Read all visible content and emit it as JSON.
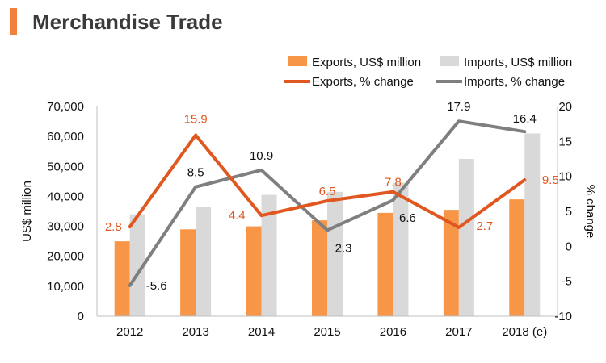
{
  "header": {
    "title": "Merchandise Trade"
  },
  "colors": {
    "exports_bar": "#f79646",
    "imports_bar": "#d9d9d9",
    "exports_line": "#e0571f",
    "imports_line": "#7f7f7f",
    "exports_label": "#e0571f",
    "imports_label": "#111111",
    "accent": "#f0803c"
  },
  "chart_data": {
    "type": "bar",
    "categories": [
      "2012",
      "2013",
      "2014",
      "2015",
      "2016",
      "2017",
      "2018 (e)"
    ],
    "ylabel": "US$ million",
    "y2label": "% change",
    "ylim": [
      0,
      70000
    ],
    "y2lim": [
      -10,
      20
    ],
    "yticks": [
      "0",
      "10,000",
      "20,000",
      "30,000",
      "40,000",
      "50,000",
      "60,000",
      "70,000"
    ],
    "y2ticks": [
      "-10",
      "-5",
      "0",
      "5",
      "10",
      "15",
      "20"
    ],
    "legend_position": "top-right",
    "series": [
      {
        "name": "Exports, US$ million",
        "kind": "bar",
        "axis": "left",
        "values": [
          25000,
          29000,
          30000,
          32000,
          34500,
          35500,
          39000
        ]
      },
      {
        "name": "Imports, US$ million",
        "kind": "bar",
        "axis": "left",
        "values": [
          34000,
          36500,
          40500,
          41500,
          44500,
          52500,
          61000
        ]
      },
      {
        "name": "Exports, % change",
        "kind": "line",
        "axis": "right",
        "values": [
          2.8,
          15.9,
          4.4,
          6.5,
          7.8,
          2.7,
          9.5
        ],
        "labels": [
          "2.8",
          "15.9",
          "4.4",
          "6.5",
          "7.8",
          "2.7",
          "9.5"
        ]
      },
      {
        "name": "Imports, % change",
        "kind": "line",
        "axis": "right",
        "values": [
          -5.6,
          8.5,
          10.9,
          2.3,
          6.6,
          17.9,
          16.4
        ],
        "labels": [
          "-5.6",
          "8.5",
          "10.9",
          "2.3",
          "6.6",
          "17.9",
          "16.4"
        ]
      }
    ]
  }
}
